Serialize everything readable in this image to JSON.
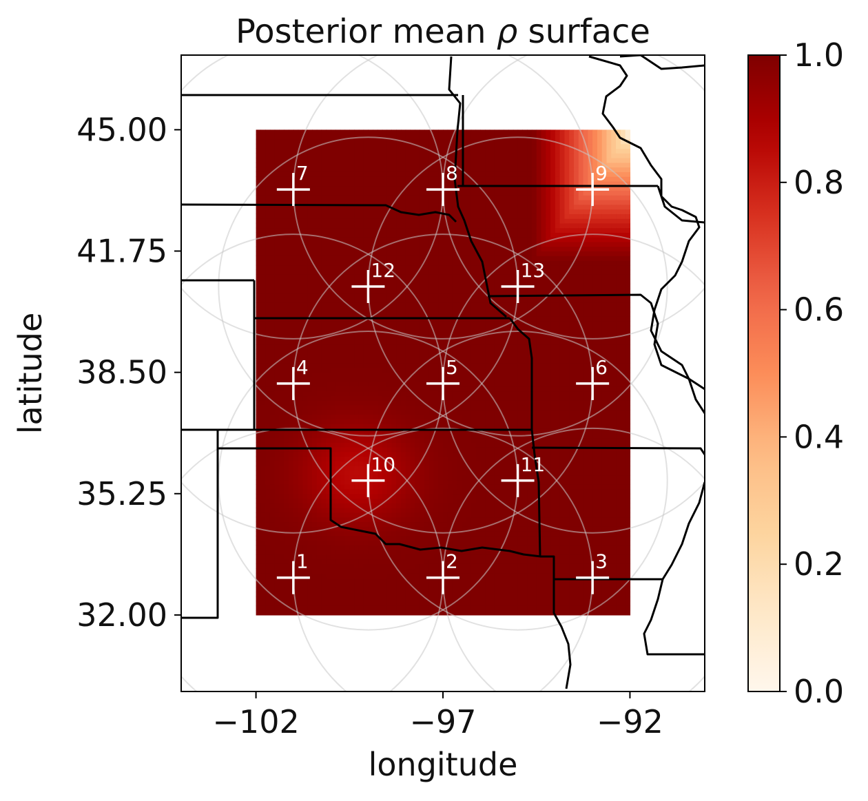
{
  "chart_data": {
    "type": "heatmap",
    "title": "Posterior mean ρ surface",
    "title_prefix": "Posterior mean ",
    "title_symbol": "ρ",
    "title_suffix": " surface",
    "xlabel": "longitude",
    "ylabel": "latitude",
    "xlim": [
      -104,
      -90
    ],
    "ylim": [
      29.95,
      47.0
    ],
    "x_ticks": [
      -102,
      -97,
      -92
    ],
    "x_tick_labels": [
      "−102",
      "−97",
      "−92"
    ],
    "y_ticks": [
      32.0,
      35.25,
      38.5,
      41.75,
      45.0
    ],
    "y_tick_labels": [
      "32.00",
      "35.25",
      "38.50",
      "41.75",
      "45.00"
    ],
    "surface_extent": {
      "lon": [
        -102,
        -92
      ],
      "lat": [
        32,
        45
      ]
    },
    "colormap": "OrRd",
    "colormap_stops": [
      "#fff7ec",
      "#fee8c8",
      "#fdd49e",
      "#fdbb84",
      "#fc8d59",
      "#ef6548",
      "#d7301f",
      "#b30000",
      "#7f0000"
    ],
    "colorbar": {
      "range": [
        0,
        1
      ],
      "ticks": [
        0.0,
        0.2,
        0.4,
        0.6,
        0.8,
        1.0
      ],
      "tick_labels": [
        "0.0",
        "0.2",
        "0.4",
        "0.6",
        "0.8",
        "1.0"
      ]
    },
    "sites": [
      {
        "label": "1",
        "lon": -101,
        "lat": 33
      },
      {
        "label": "2",
        "lon": -97,
        "lat": 33
      },
      {
        "label": "3",
        "lon": -93,
        "lat": 33
      },
      {
        "label": "4",
        "lon": -101,
        "lat": 38.2
      },
      {
        "label": "5",
        "lon": -97,
        "lat": 38.2
      },
      {
        "label": "6",
        "lon": -93,
        "lat": 38.2
      },
      {
        "label": "7",
        "lon": -101,
        "lat": 43.4
      },
      {
        "label": "8",
        "lon": -97,
        "lat": 43.4
      },
      {
        "label": "9",
        "lon": -93,
        "lat": 43.4
      },
      {
        "label": "10",
        "lon": -99,
        "lat": 35.6
      },
      {
        "label": "11",
        "lon": -95,
        "lat": 35.6
      },
      {
        "label": "12",
        "lon": -99,
        "lat": 40.8
      },
      {
        "label": "13",
        "lon": -95,
        "lat": 40.8
      }
    ],
    "knot_radius_deg": 4,
    "low_rho_regions": [
      {
        "near_site": "9",
        "lon": -92.4,
        "lat": 44.5,
        "min_value": 0.1
      },
      {
        "near_site": "10",
        "lon": -99.3,
        "lat": 35.8,
        "min_value": 0.85
      }
    ]
  }
}
